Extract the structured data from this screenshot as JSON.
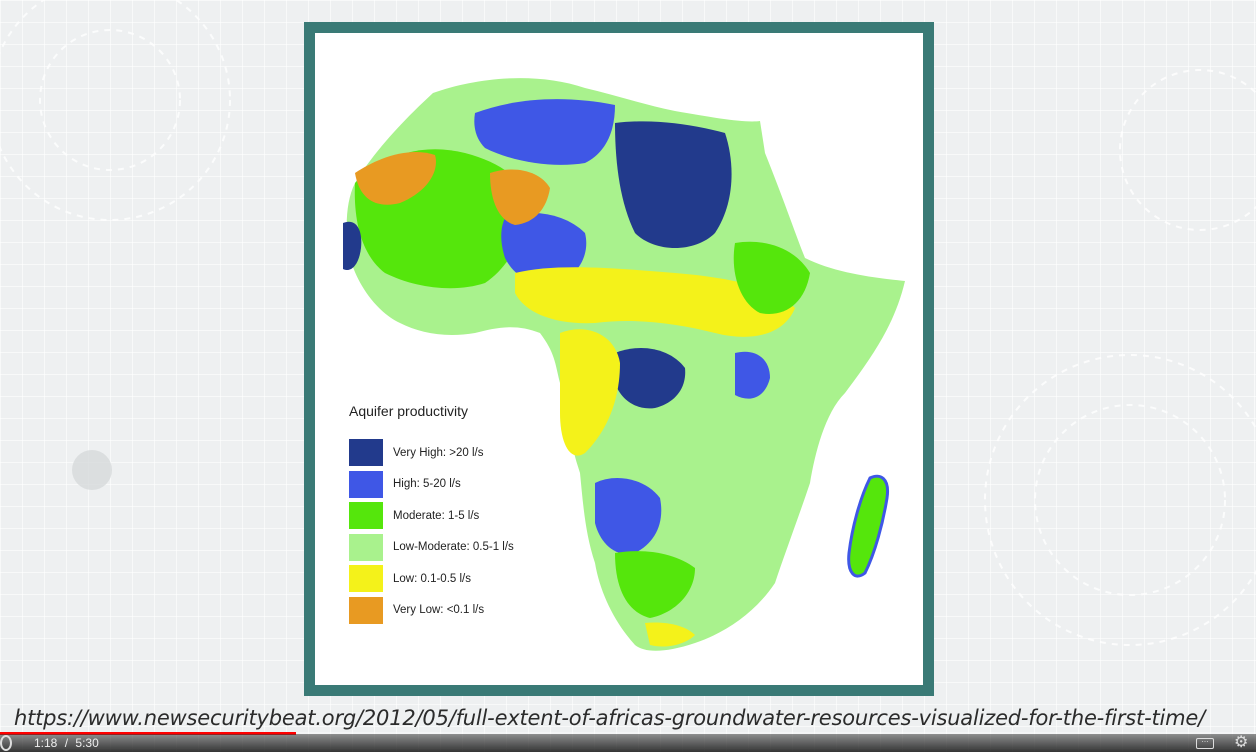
{
  "map": {
    "legend_title": "Aquifer productivity",
    "legend_items": [
      {
        "label": "Very High: >20 l/s",
        "color": "#223a8c"
      },
      {
        "label": "High: 5-20 l/s",
        "color": "#3f57e6"
      },
      {
        "label": "Moderate: 1-5 l/s",
        "color": "#55e60c"
      },
      {
        "label": "Low-Moderate: 0.5-1 l/s",
        "color": "#a9f28d"
      },
      {
        "label": "Low: 0.1-0.5 l/s",
        "color": "#f4f21a"
      },
      {
        "label": "Very Low: <0.1 l/s",
        "color": "#e89a22"
      }
    ]
  },
  "caption": {
    "url": "https://www.newsecuritybeat.org/2012/05/full-extent-of-africas-groundwater-resources-visualized-for-the-first-time/"
  },
  "player": {
    "current_time": "1:18",
    "separator": "/",
    "duration": "5:30",
    "progress": 0.236,
    "accent_color": "#ff0000"
  },
  "theme": {
    "frame_color": "#3a7a76"
  }
}
